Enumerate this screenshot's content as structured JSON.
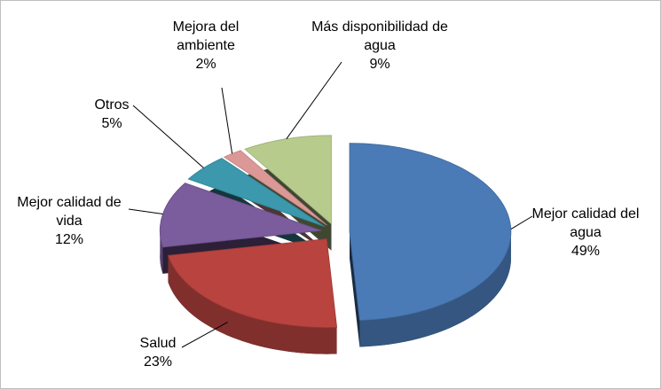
{
  "chart_data": {
    "type": "pie3d",
    "categories": [
      "Mejor calidad del agua",
      "Salud",
      "Mejor calidad de vida",
      "Otros",
      "Mejora del ambiente",
      "Más disponibilidad de agua"
    ],
    "values": [
      49,
      23,
      12,
      5,
      2,
      9
    ],
    "value_labels": [
      "49%",
      "23%",
      "12%",
      "5%",
      "2%",
      "9%"
    ],
    "colors": [
      "#4a7bb7",
      "#b8433f",
      "#7b5c9c",
      "#3b98ad",
      "#dc9896",
      "#b7cb8d"
    ]
  }
}
